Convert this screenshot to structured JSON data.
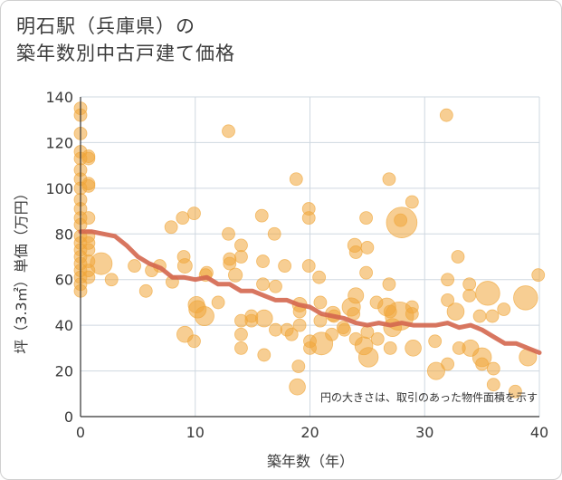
{
  "header": {
    "title_line1": "明石駅（兵庫県）の",
    "title_line2": "築年数別中古戸建て価格"
  },
  "colors": {
    "bubble": "#f0a63a",
    "trend": "#d4674f",
    "grid": "#cfd8e0"
  },
  "chart_data": {
    "type": "scatter",
    "title": "明石駅（兵庫県）の 築年数別中古戸建て価格",
    "xlabel": "築年数（年）",
    "ylabel": "坪（3.3㎡）単価（万円）",
    "xlim": [
      0,
      40
    ],
    "ylim": [
      0,
      140
    ],
    "xticks": [
      0,
      10,
      20,
      30,
      40
    ],
    "yticks": [
      0,
      20,
      40,
      60,
      80,
      100,
      120,
      140
    ],
    "grid": true,
    "note": "円の大きさは、取引のあった物件面積を示す",
    "points": [
      {
        "x": 0,
        "y": 135,
        "s": 1
      },
      {
        "x": 0,
        "y": 132,
        "s": 1
      },
      {
        "x": 0,
        "y": 124,
        "s": 1
      },
      {
        "x": 0,
        "y": 116,
        "s": 1
      },
      {
        "x": 0,
        "y": 113,
        "s": 1
      },
      {
        "x": 0,
        "y": 108,
        "s": 1
      },
      {
        "x": 0,
        "y": 104,
        "s": 1
      },
      {
        "x": 0,
        "y": 100,
        "s": 1
      },
      {
        "x": 0,
        "y": 95,
        "s": 1
      },
      {
        "x": 0,
        "y": 91,
        "s": 1
      },
      {
        "x": 0,
        "y": 87,
        "s": 1
      },
      {
        "x": 0,
        "y": 84,
        "s": 1
      },
      {
        "x": 0,
        "y": 79,
        "s": 1
      },
      {
        "x": 0,
        "y": 76,
        "s": 1
      },
      {
        "x": 0,
        "y": 73,
        "s": 1
      },
      {
        "x": 0,
        "y": 70,
        "s": 1
      },
      {
        "x": 0,
        "y": 67,
        "s": 1
      },
      {
        "x": 0,
        "y": 64,
        "s": 1
      },
      {
        "x": 0,
        "y": 61,
        "s": 1
      },
      {
        "x": 0,
        "y": 58,
        "s": 1
      },
      {
        "x": 0,
        "y": 55,
        "s": 1
      },
      {
        "x": 0.7,
        "y": 114,
        "s": 1
      },
      {
        "x": 0.7,
        "y": 113,
        "s": 1
      },
      {
        "x": 0.7,
        "y": 102,
        "s": 1
      },
      {
        "x": 0.7,
        "y": 101,
        "s": 1
      },
      {
        "x": 0.7,
        "y": 87,
        "s": 1
      },
      {
        "x": 0.7,
        "y": 79,
        "s": 1
      },
      {
        "x": 0.7,
        "y": 76,
        "s": 1
      },
      {
        "x": 0.7,
        "y": 73,
        "s": 1
      },
      {
        "x": 0.7,
        "y": 68,
        "s": 1
      },
      {
        "x": 0.7,
        "y": 64,
        "s": 1
      },
      {
        "x": 0.7,
        "y": 61,
        "s": 1
      },
      {
        "x": 1.8,
        "y": 67,
        "s": 3
      },
      {
        "x": 2.7,
        "y": 60,
        "s": 1
      },
      {
        "x": 4.7,
        "y": 66,
        "s": 1
      },
      {
        "x": 5.7,
        "y": 55,
        "s": 1
      },
      {
        "x": 6.2,
        "y": 64,
        "s": 1
      },
      {
        "x": 6.9,
        "y": 66,
        "s": 1
      },
      {
        "x": 7.9,
        "y": 83,
        "s": 1
      },
      {
        "x": 8.0,
        "y": 59,
        "s": 1
      },
      {
        "x": 8.9,
        "y": 87,
        "s": 1
      },
      {
        "x": 9.0,
        "y": 70,
        "s": 1
      },
      {
        "x": 9.1,
        "y": 66,
        "s": 1.3
      },
      {
        "x": 9.1,
        "y": 36,
        "s": 1.6
      },
      {
        "x": 9.9,
        "y": 89,
        "s": 1
      },
      {
        "x": 9.9,
        "y": 33,
        "s": 1
      },
      {
        "x": 10.1,
        "y": 49,
        "s": 1.7
      },
      {
        "x": 10.2,
        "y": 47,
        "s": 1.9
      },
      {
        "x": 10.8,
        "y": 44,
        "s": 2.3
      },
      {
        "x": 10.9,
        "y": 62,
        "s": 1
      },
      {
        "x": 11.0,
        "y": 63,
        "s": 1
      },
      {
        "x": 12.0,
        "y": 50,
        "s": 1
      },
      {
        "x": 12.9,
        "y": 125,
        "s": 1
      },
      {
        "x": 12.9,
        "y": 80,
        "s": 1
      },
      {
        "x": 13.0,
        "y": 69,
        "s": 1
      },
      {
        "x": 13.0,
        "y": 67,
        "s": 1
      },
      {
        "x": 13.5,
        "y": 62,
        "s": 1.2
      },
      {
        "x": 14.0,
        "y": 75,
        "s": 1
      },
      {
        "x": 14.0,
        "y": 70,
        "s": 1
      },
      {
        "x": 14.0,
        "y": 42,
        "s": 1
      },
      {
        "x": 14.0,
        "y": 36,
        "s": 1
      },
      {
        "x": 14.0,
        "y": 30,
        "s": 1
      },
      {
        "x": 14.9,
        "y": 44,
        "s": 1
      },
      {
        "x": 14.9,
        "y": 42,
        "s": 1
      },
      {
        "x": 15.8,
        "y": 88,
        "s": 1
      },
      {
        "x": 15.9,
        "y": 68,
        "s": 1
      },
      {
        "x": 15.9,
        "y": 58,
        "s": 1
      },
      {
        "x": 16.0,
        "y": 43,
        "s": 1.8
      },
      {
        "x": 16.0,
        "y": 27,
        "s": 1
      },
      {
        "x": 16.9,
        "y": 80,
        "s": 1
      },
      {
        "x": 17.0,
        "y": 57,
        "s": 1
      },
      {
        "x": 17.0,
        "y": 38,
        "s": 1
      },
      {
        "x": 17.8,
        "y": 66,
        "s": 1
      },
      {
        "x": 18.0,
        "y": 38,
        "s": 1
      },
      {
        "x": 18.4,
        "y": 36,
        "s": 1
      },
      {
        "x": 18.8,
        "y": 104,
        "s": 1
      },
      {
        "x": 18.9,
        "y": 13,
        "s": 1.6
      },
      {
        "x": 19.0,
        "y": 22,
        "s": 1
      },
      {
        "x": 19.1,
        "y": 49,
        "s": 1.3
      },
      {
        "x": 19.1,
        "y": 46,
        "s": 1
      },
      {
        "x": 19.1,
        "y": 40,
        "s": 1
      },
      {
        "x": 19.9,
        "y": 91,
        "s": 1
      },
      {
        "x": 19.9,
        "y": 87,
        "s": 1
      },
      {
        "x": 19.9,
        "y": 66,
        "s": 1
      },
      {
        "x": 20.0,
        "y": 33,
        "s": 1
      },
      {
        "x": 20.0,
        "y": 30,
        "s": 1
      },
      {
        "x": 20.8,
        "y": 61,
        "s": 1
      },
      {
        "x": 20.9,
        "y": 50,
        "s": 1
      },
      {
        "x": 20.9,
        "y": 42,
        "s": 1
      },
      {
        "x": 21.0,
        "y": 32,
        "s": 3.2
      },
      {
        "x": 21.9,
        "y": 36,
        "s": 1
      },
      {
        "x": 22.0,
        "y": 45,
        "s": 1.4
      },
      {
        "x": 22.1,
        "y": 44,
        "s": 1
      },
      {
        "x": 22.9,
        "y": 39,
        "s": 1
      },
      {
        "x": 23.0,
        "y": 38,
        "s": 1
      },
      {
        "x": 23.6,
        "y": 48,
        "s": 2.1
      },
      {
        "x": 23.8,
        "y": 45,
        "s": 1
      },
      {
        "x": 23.9,
        "y": 75,
        "s": 1.2
      },
      {
        "x": 24.0,
        "y": 72,
        "s": 1
      },
      {
        "x": 24.0,
        "y": 53,
        "s": 1.5
      },
      {
        "x": 24.0,
        "y": 34,
        "s": 1
      },
      {
        "x": 24.7,
        "y": 31,
        "s": 2
      },
      {
        "x": 24.9,
        "y": 87,
        "s": 1
      },
      {
        "x": 24.9,
        "y": 63,
        "s": 1
      },
      {
        "x": 25.0,
        "y": 74,
        "s": 1
      },
      {
        "x": 25.0,
        "y": 37,
        "s": 1
      },
      {
        "x": 25.1,
        "y": 26,
        "s": 2.4
      },
      {
        "x": 25.8,
        "y": 50,
        "s": 1
      },
      {
        "x": 25.9,
        "y": 34,
        "s": 1
      },
      {
        "x": 26.7,
        "y": 48,
        "s": 2
      },
      {
        "x": 26.9,
        "y": 104,
        "s": 1
      },
      {
        "x": 26.9,
        "y": 58,
        "s": 1
      },
      {
        "x": 27.0,
        "y": 46,
        "s": 1
      },
      {
        "x": 27.0,
        "y": 30,
        "s": 1
      },
      {
        "x": 27.2,
        "y": 39,
        "s": 2
      },
      {
        "x": 27.8,
        "y": 44,
        "s": 5
      },
      {
        "x": 27.9,
        "y": 86,
        "s": 1
      },
      {
        "x": 28.0,
        "y": 85,
        "s": 5.8
      },
      {
        "x": 28.9,
        "y": 94,
        "s": 1
      },
      {
        "x": 28.9,
        "y": 48,
        "s": 1
      },
      {
        "x": 28.9,
        "y": 45,
        "s": 1
      },
      {
        "x": 29.0,
        "y": 30,
        "s": 1.6
      },
      {
        "x": 30.9,
        "y": 33,
        "s": 1
      },
      {
        "x": 31.0,
        "y": 20,
        "s": 1.9
      },
      {
        "x": 31.9,
        "y": 132,
        "s": 1
      },
      {
        "x": 32.0,
        "y": 60,
        "s": 1
      },
      {
        "x": 32.0,
        "y": 51,
        "s": 1
      },
      {
        "x": 32.0,
        "y": 23,
        "s": 1
      },
      {
        "x": 32.7,
        "y": 46,
        "s": 1.8
      },
      {
        "x": 32.9,
        "y": 70,
        "s": 1
      },
      {
        "x": 33.0,
        "y": 30,
        "s": 1
      },
      {
        "x": 33.9,
        "y": 58,
        "s": 1
      },
      {
        "x": 33.9,
        "y": 53,
        "s": 1
      },
      {
        "x": 34.0,
        "y": 30,
        "s": 1.7
      },
      {
        "x": 34.8,
        "y": 44,
        "s": 1
      },
      {
        "x": 35.0,
        "y": 26,
        "s": 2.2
      },
      {
        "x": 35.0,
        "y": 23,
        "s": 1
      },
      {
        "x": 35.5,
        "y": 54,
        "s": 3.6
      },
      {
        "x": 35.9,
        "y": 44,
        "s": 1
      },
      {
        "x": 36.0,
        "y": 21,
        "s": 1
      },
      {
        "x": 36.0,
        "y": 14,
        "s": 1
      },
      {
        "x": 36.9,
        "y": 47,
        "s": 1
      },
      {
        "x": 37.9,
        "y": 11,
        "s": 1
      },
      {
        "x": 38.8,
        "y": 52,
        "s": 3.6
      },
      {
        "x": 39.0,
        "y": 26,
        "s": 1.9
      },
      {
        "x": 39.9,
        "y": 62,
        "s": 1
      }
    ],
    "trend": [
      {
        "x": 0,
        "y": 81
      },
      {
        "x": 1,
        "y": 81
      },
      {
        "x": 2,
        "y": 80
      },
      {
        "x": 3,
        "y": 79
      },
      {
        "x": 4,
        "y": 75
      },
      {
        "x": 5,
        "y": 70
      },
      {
        "x": 6,
        "y": 67
      },
      {
        "x": 7,
        "y": 65
      },
      {
        "x": 8,
        "y": 61
      },
      {
        "x": 9,
        "y": 61
      },
      {
        "x": 10,
        "y": 60
      },
      {
        "x": 11,
        "y": 61
      },
      {
        "x": 12,
        "y": 58
      },
      {
        "x": 13,
        "y": 58
      },
      {
        "x": 14,
        "y": 55
      },
      {
        "x": 15,
        "y": 55
      },
      {
        "x": 16,
        "y": 53
      },
      {
        "x": 17,
        "y": 51
      },
      {
        "x": 18,
        "y": 51
      },
      {
        "x": 19,
        "y": 49
      },
      {
        "x": 20,
        "y": 48
      },
      {
        "x": 21,
        "y": 45
      },
      {
        "x": 22,
        "y": 44
      },
      {
        "x": 23,
        "y": 43
      },
      {
        "x": 24,
        "y": 41
      },
      {
        "x": 25,
        "y": 40
      },
      {
        "x": 26,
        "y": 41
      },
      {
        "x": 27,
        "y": 40
      },
      {
        "x": 28,
        "y": 41
      },
      {
        "x": 29,
        "y": 40
      },
      {
        "x": 30,
        "y": 40
      },
      {
        "x": 31,
        "y": 40
      },
      {
        "x": 32,
        "y": 41
      },
      {
        "x": 33,
        "y": 39
      },
      {
        "x": 34,
        "y": 40
      },
      {
        "x": 35,
        "y": 38
      },
      {
        "x": 36,
        "y": 35
      },
      {
        "x": 37,
        "y": 32
      },
      {
        "x": 38,
        "y": 32
      },
      {
        "x": 39,
        "y": 30
      },
      {
        "x": 40,
        "y": 28
      }
    ]
  }
}
